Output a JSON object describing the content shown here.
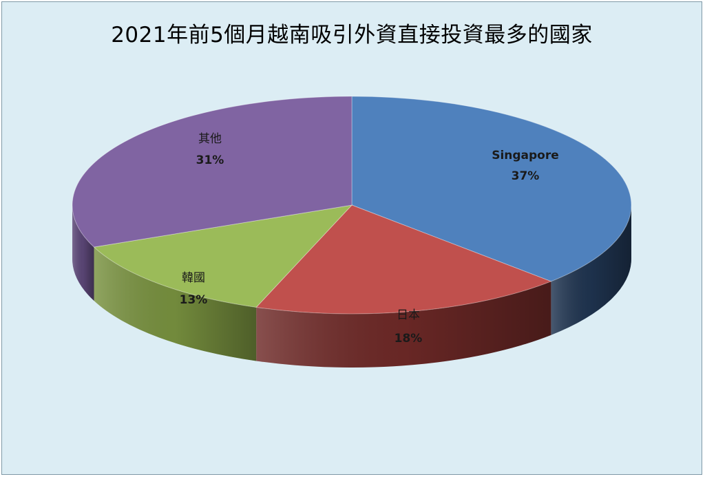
{
  "chart_data": {
    "type": "pie",
    "title": "2021年前5個月越南吸引外資直接投資最多的國家",
    "slices": [
      {
        "label": "Singapore",
        "value": 37,
        "value_label": "37%",
        "color": "#4f81bd",
        "side_color": "#1f3450"
      },
      {
        "label": "日本",
        "value": 18,
        "value_label": "18%",
        "color": "#c0504d",
        "side_color": "#6e2927"
      },
      {
        "label": "韓國",
        "value": 13,
        "value_label": "13%",
        "color": "#9bbb59",
        "side_color": "#78913f"
      },
      {
        "label": "其他",
        "value": 31,
        "value_label": "31%",
        "color": "#8064a2",
        "side_color": "#5c4778"
      }
    ],
    "style": "3d",
    "legend": "none"
  }
}
